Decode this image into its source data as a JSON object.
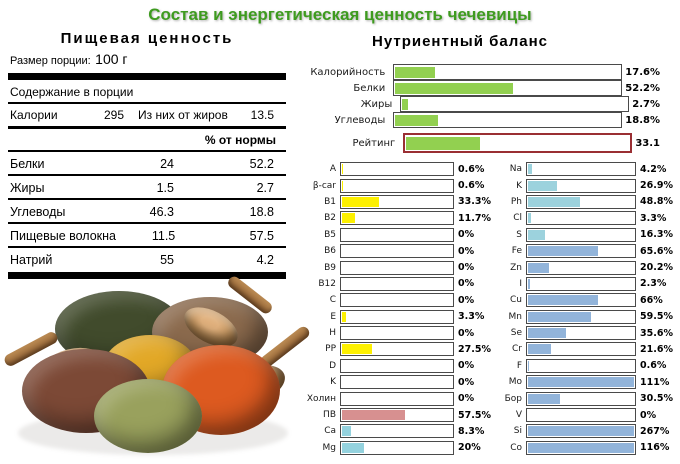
{
  "title": "Состав и энергетическая ценность чечевицы",
  "title_color": "#3e9b1f",
  "left_panel": {
    "header": "Пищевая ценность",
    "serving_label": "Размер порции:",
    "serving_value": "100 г",
    "content_label": "Содержание в порции",
    "calories_label": "Калории",
    "calories_value": "295",
    "fat_calories_label": "Из них от жиров",
    "fat_calories_value": "13.5",
    "percent_header": "% от нормы",
    "rows": [
      {
        "label": "Белки",
        "amount": "24",
        "percent": "52.2"
      },
      {
        "label": "Жиры",
        "amount": "1.5",
        "percent": "2.7"
      },
      {
        "label": "Углеводы",
        "amount": "46.3",
        "percent": "18.8"
      },
      {
        "label": "Пищевые волокна",
        "amount": "11.5",
        "percent": "57.5"
      },
      {
        "label": "Натрий",
        "amount": "55",
        "percent": "4.2"
      }
    ]
  },
  "right_panel": {
    "header": "Нутриентный баланс"
  },
  "photo": {
    "description": "ассорти из чечевицы с деревянными совками",
    "colors": {
      "black_lentils": "#414b2c",
      "brown_lentils": "#8b6a4d",
      "yellow_lentils": "#e2a827",
      "red_brown_lentils": "#7c4936",
      "orange_lentils": "#dd5a20",
      "green_lentils": "#99a15d",
      "scoop_wood": "#bd8d55"
    }
  },
  "chart_data": [
    {
      "id": "macro-balance",
      "type": "bar",
      "orientation": "horizontal",
      "title": "Нутриентный баланс",
      "xlim": [
        0,
        100
      ],
      "bar_color": "#92d050",
      "box_border_color": "#4a4a4a",
      "highlight_border_color": "#9a2f33",
      "bars": [
        {
          "label": "Калорийность",
          "value": 17.6,
          "display": "17.6%"
        },
        {
          "label": "Белки",
          "value": 52.2,
          "display": "52.2%"
        },
        {
          "label": "Жиры",
          "value": 2.7,
          "display": "2.7%"
        },
        {
          "label": "Углеводы",
          "value": 18.8,
          "display": "18.8%"
        },
        {
          "label": "Рейтинг",
          "value": 33.1,
          "display": "33.1",
          "highlight": true
        }
      ]
    },
    {
      "id": "vitamins-column",
      "type": "bar",
      "orientation": "horizontal",
      "xlim": [
        0,
        100
      ],
      "bars": [
        {
          "label": "A",
          "value": 0.6,
          "display": "0.6%",
          "color": "#fdf000"
        },
        {
          "label": "β-car",
          "value": 0.6,
          "display": "0.6%",
          "color": "#fdf000"
        },
        {
          "label": "B1",
          "value": 33.3,
          "display": "33.3%",
          "color": "#fdf000"
        },
        {
          "label": "B2",
          "value": 11.7,
          "display": "11.7%",
          "color": "#fdf000"
        },
        {
          "label": "B5",
          "value": 0,
          "display": "0%",
          "color": "#fdf000"
        },
        {
          "label": "B6",
          "value": 0,
          "display": "0%",
          "color": "#fdf000"
        },
        {
          "label": "B9",
          "value": 0,
          "display": "0%",
          "color": "#fdf000"
        },
        {
          "label": "B12",
          "value": 0,
          "display": "0%",
          "color": "#fdf000"
        },
        {
          "label": "C",
          "value": 0,
          "display": "0%",
          "color": "#fdf000"
        },
        {
          "label": "E",
          "value": 3.3,
          "display": "3.3%",
          "color": "#fdf000"
        },
        {
          "label": "H",
          "value": 0,
          "display": "0%",
          "color": "#fdf000"
        },
        {
          "label": "PP",
          "value": 27.5,
          "display": "27.5%",
          "color": "#fdf000"
        },
        {
          "label": "D",
          "value": 0,
          "display": "0%",
          "color": "#fdf000"
        },
        {
          "label": "K",
          "value": 0,
          "display": "0%",
          "color": "#fdf000"
        },
        {
          "label": "Холин",
          "value": 0,
          "display": "0%",
          "color": "#fdf000"
        },
        {
          "label": "ПВ",
          "value": 57.5,
          "display": "57.5%",
          "color": "#d79090"
        },
        {
          "label": "Ca",
          "value": 8.3,
          "display": "8.3%",
          "color": "#94d2de"
        },
        {
          "label": "Mg",
          "value": 20,
          "display": "20%",
          "color": "#94d2de"
        }
      ]
    },
    {
      "id": "minerals-column",
      "type": "bar",
      "orientation": "horizontal",
      "xlim": [
        0,
        100
      ],
      "bars": [
        {
          "label": "Na",
          "value": 4.2,
          "display": "4.2%",
          "color": "#9cd2dd"
        },
        {
          "label": "K",
          "value": 26.9,
          "display": "26.9%",
          "color": "#9cd2dd"
        },
        {
          "label": "Ph",
          "value": 48.8,
          "display": "48.8%",
          "color": "#9cd2dd"
        },
        {
          "label": "Cl",
          "value": 3.3,
          "display": "3.3%",
          "color": "#9cd2dd"
        },
        {
          "label": "S",
          "value": 16.3,
          "display": "16.3%",
          "color": "#9cd2dd"
        },
        {
          "label": "Fe",
          "value": 65.6,
          "display": "65.6%",
          "color": "#92b4da"
        },
        {
          "label": "Zn",
          "value": 20.2,
          "display": "20.2%",
          "color": "#92b4da"
        },
        {
          "label": "I",
          "value": 2.3,
          "display": "2.3%",
          "color": "#92b4da"
        },
        {
          "label": "Cu",
          "value": 66,
          "display": "66%",
          "color": "#92b4da"
        },
        {
          "label": "Mn",
          "value": 59.5,
          "display": "59.5%",
          "color": "#92b4da"
        },
        {
          "label": "Se",
          "value": 35.6,
          "display": "35.6%",
          "color": "#92b4da"
        },
        {
          "label": "Cr",
          "value": 21.6,
          "display": "21.6%",
          "color": "#92b4da"
        },
        {
          "label": "F",
          "value": 0.6,
          "display": "0.6%",
          "color": "#92b4da"
        },
        {
          "label": "Mo",
          "value": 111,
          "display": "111%",
          "color": "#92b4da"
        },
        {
          "label": "Бор",
          "value": 30.5,
          "display": "30.5%",
          "color": "#92b4da"
        },
        {
          "label": "V",
          "value": 0,
          "display": "0%",
          "color": "#92b4da"
        },
        {
          "label": "Si",
          "value": 267,
          "display": "267%",
          "color": "#92b4da"
        },
        {
          "label": "Co",
          "value": 116,
          "display": "116%",
          "color": "#92b4da"
        }
      ]
    }
  ]
}
